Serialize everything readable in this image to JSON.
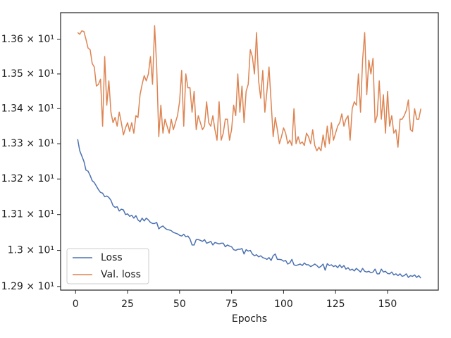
{
  "chart_data": {
    "type": "line",
    "xlabel": "Epochs",
    "yscale": "log",
    "legend": "lower left",
    "xlim": [
      -7.2,
      174.4
    ],
    "xticks": [
      0,
      25,
      50,
      75,
      100,
      125,
      150
    ],
    "ylim": [
      12.89,
      13.678
    ],
    "yticks": [
      {
        "value": 12.9,
        "label": "1.29 × 10¹"
      },
      {
        "value": 13.0,
        "label": "1.3 × 10¹"
      },
      {
        "value": 13.1,
        "label": "1.31 × 10¹"
      },
      {
        "value": 13.2,
        "label": "1.32 × 10¹"
      },
      {
        "value": 13.3,
        "label": "1.33 × 10¹"
      },
      {
        "value": 13.4,
        "label": "1.34 × 10¹"
      },
      {
        "value": 13.5,
        "label": "1.35 × 10¹"
      },
      {
        "value": 13.6,
        "label": "1.36 × 10¹"
      }
    ],
    "x": [
      1,
      2,
      3,
      4,
      5,
      6,
      7,
      8,
      9,
      10,
      11,
      12,
      13,
      14,
      15,
      16,
      17,
      18,
      19,
      20,
      21,
      22,
      23,
      24,
      25,
      26,
      27,
      28,
      29,
      30,
      31,
      32,
      33,
      34,
      35,
      36,
      37,
      38,
      39,
      40,
      41,
      42,
      43,
      44,
      45,
      46,
      47,
      48,
      49,
      50,
      51,
      52,
      53,
      54,
      55,
      56,
      57,
      58,
      59,
      60,
      61,
      62,
      63,
      64,
      65,
      66,
      67,
      68,
      69,
      70,
      71,
      72,
      73,
      74,
      75,
      76,
      77,
      78,
      79,
      80,
      81,
      82,
      83,
      84,
      85,
      86,
      87,
      88,
      89,
      90,
      91,
      92,
      93,
      94,
      95,
      96,
      97,
      98,
      99,
      100,
      101,
      102,
      103,
      104,
      105,
      106,
      107,
      108,
      109,
      110,
      111,
      112,
      113,
      114,
      115,
      116,
      117,
      118,
      119,
      120,
      121,
      122,
      123,
      124,
      125,
      126,
      127,
      128,
      129,
      130,
      131,
      132,
      133,
      134,
      135,
      136,
      137,
      138,
      139,
      140,
      141,
      142,
      143,
      144,
      145,
      146,
      147,
      148,
      149,
      150,
      151,
      152,
      153,
      154,
      155,
      156,
      157,
      158,
      159,
      160,
      161,
      162,
      163,
      164,
      165,
      166
    ],
    "series": [
      {
        "name": "Loss",
        "color": "#4c72b0",
        "values": [
          13.313,
          13.28,
          13.265,
          13.25,
          13.225,
          13.222,
          13.21,
          13.195,
          13.19,
          13.18,
          13.17,
          13.162,
          13.16,
          13.15,
          13.152,
          13.148,
          13.14,
          13.125,
          13.12,
          13.122,
          13.11,
          13.115,
          13.113,
          13.1,
          13.102,
          13.095,
          13.098,
          13.09,
          13.097,
          13.085,
          13.08,
          13.09,
          13.082,
          13.09,
          13.085,
          13.078,
          13.075,
          13.075,
          13.078,
          13.06,
          13.065,
          13.068,
          13.062,
          13.058,
          13.057,
          13.055,
          13.05,
          13.048,
          13.046,
          13.042,
          13.04,
          13.045,
          13.038,
          13.04,
          13.032,
          13.015,
          13.015,
          13.03,
          13.03,
          13.028,
          13.025,
          13.03,
          13.02,
          13.022,
          13.025,
          13.015,
          13.022,
          13.02,
          13.018,
          13.02,
          13.02,
          13.01,
          13.015,
          13.012,
          13.01,
          13.002,
          13.0,
          13.003,
          13.003,
          13.005,
          12.99,
          13.002,
          12.998,
          13.0,
          12.99,
          12.985,
          12.988,
          12.982,
          12.985,
          12.98,
          12.978,
          12.975,
          12.98,
          12.972,
          12.985,
          12.99,
          12.975,
          12.975,
          12.974,
          12.97,
          12.972,
          12.962,
          12.965,
          12.975,
          12.96,
          12.958,
          12.96,
          12.962,
          12.958,
          12.965,
          12.96,
          12.96,
          12.955,
          12.958,
          12.962,
          12.958,
          12.952,
          12.956,
          12.962,
          12.945,
          12.963,
          12.958,
          12.96,
          12.955,
          12.958,
          12.952,
          12.96,
          12.952,
          12.958,
          12.948,
          12.952,
          12.945,
          12.948,
          12.943,
          12.95,
          12.945,
          12.94,
          12.95,
          12.942,
          12.94,
          12.942,
          12.938,
          12.94,
          12.948,
          12.935,
          12.935,
          12.948,
          12.94,
          12.942,
          12.936,
          12.935,
          12.94,
          12.932,
          12.935,
          12.93,
          12.935,
          12.928,
          12.93,
          12.935,
          12.925,
          12.93,
          12.928,
          12.932,
          12.925,
          12.93,
          12.923
        ]
      },
      {
        "name": "Val. loss",
        "color": "#dd8452",
        "values": [
          13.62,
          13.615,
          13.625,
          13.623,
          13.6,
          13.575,
          13.57,
          13.53,
          13.52,
          13.465,
          13.47,
          13.485,
          13.35,
          13.55,
          13.41,
          13.48,
          13.39,
          13.36,
          13.375,
          13.35,
          13.39,
          13.36,
          13.325,
          13.345,
          13.36,
          13.335,
          13.36,
          13.33,
          13.38,
          13.375,
          13.44,
          13.47,
          13.495,
          13.48,
          13.5,
          13.55,
          13.47,
          13.64,
          13.52,
          13.32,
          13.41,
          13.33,
          13.37,
          13.35,
          13.33,
          13.37,
          13.34,
          13.36,
          13.38,
          13.42,
          13.51,
          13.35,
          13.5,
          13.46,
          13.46,
          13.39,
          13.45,
          13.34,
          13.38,
          13.36,
          13.34,
          13.35,
          13.42,
          13.36,
          13.35,
          13.38,
          13.34,
          13.31,
          13.42,
          13.31,
          13.33,
          13.37,
          13.37,
          13.31,
          13.34,
          13.41,
          13.38,
          13.5,
          13.39,
          13.465,
          13.36,
          13.45,
          13.47,
          13.57,
          13.55,
          13.5,
          13.62,
          13.48,
          13.43,
          13.51,
          13.39,
          13.45,
          13.52,
          13.42,
          13.32,
          13.375,
          13.34,
          13.3,
          13.32,
          13.345,
          13.33,
          13.3,
          13.31,
          13.295,
          13.4,
          13.3,
          13.32,
          13.3,
          13.305,
          13.295,
          13.33,
          13.32,
          13.3,
          13.34,
          13.295,
          13.28,
          13.29,
          13.28,
          13.325,
          13.29,
          13.35,
          13.3,
          13.36,
          13.31,
          13.33,
          13.35,
          13.36,
          13.385,
          13.35,
          13.37,
          13.38,
          13.31,
          13.4,
          13.42,
          13.41,
          13.5,
          13.39,
          13.54,
          13.62,
          13.44,
          13.54,
          13.5,
          13.545,
          13.36,
          13.38,
          13.48,
          13.37,
          13.44,
          13.33,
          13.45,
          13.35,
          13.38,
          13.33,
          13.34,
          13.29,
          13.37,
          13.37,
          13.38,
          13.395,
          13.425,
          13.34,
          13.335,
          13.4,
          13.37,
          13.37,
          13.4
        ]
      }
    ]
  }
}
